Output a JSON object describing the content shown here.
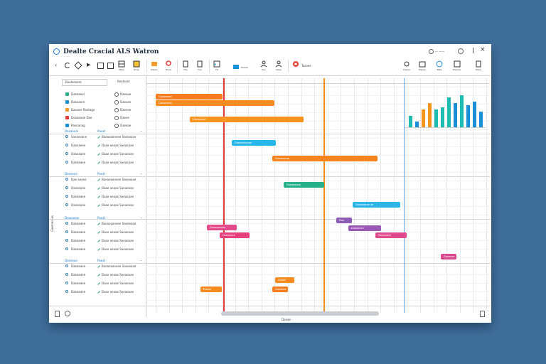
{
  "app": {
    "title": "Dealte Cracial ALS Watron",
    "subtitle": "———"
  },
  "window_controls": {
    "status": "— ——",
    "icons": [
      "user-icon",
      "help-icon",
      "minimize-icon",
      "close-icon"
    ]
  },
  "toolbar": {
    "tools": [
      {
        "label": "Ntee",
        "icon": "table-icon"
      },
      {
        "label": "Ense",
        "icon": "list-icon"
      },
      {
        "label": "Daeeo",
        "icon": "folder-icon"
      },
      {
        "label": "Ense",
        "icon": "pin-icon"
      },
      {
        "label": "Dre",
        "icon": "doc-icon"
      },
      {
        "label": "Fne",
        "icon": "doc-icon"
      },
      {
        "label": "Fe",
        "icon": "chart-icon"
      },
      {
        "label": "Daeae",
        "icon": "edit-icon"
      },
      {
        "label": "Ree",
        "icon": "person-icon"
      },
      {
        "label": "Saee",
        "icon": "person-icon"
      },
      {
        "label": "Tasaee",
        "icon": "chrome-icon"
      }
    ],
    "right_tools": [
      {
        "label": "Daase",
        "icon": "settings-icon"
      },
      {
        "label": "Daeae",
        "icon": "calendar-icon"
      },
      {
        "label": "Rata",
        "icon": "world-icon"
      },
      {
        "label": "Daease",
        "icon": "chart-icon"
      },
      {
        "label": "Daee",
        "icon": "doc-icon"
      }
    ]
  },
  "search": {
    "placeholder": "Baaleeaare",
    "tab": "Rentsest"
  },
  "sidebar_group_label": "Gaemeraes",
  "groups": [
    {
      "name": "",
      "col2": "",
      "items": [
        {
          "a": "Daeaeeel",
          "b": "Daeeae"
        },
        {
          "a": "Daeaeere",
          "b": "Daeaee"
        },
        {
          "a": "Danaee Rantage",
          "b": "Daeeae"
        },
        {
          "a": "Doaaeaae Dae",
          "b": "Daeee"
        },
        {
          "a": "Paenanag",
          "b": "Daeeae"
        }
      ]
    },
    {
      "name": "Daaaeaal",
      "col2": "Paeat",
      "items": [
        {
          "a": "Saeaeaane",
          "b": "Baeaeaaneee Saeaeaae"
        },
        {
          "a": "Daaeaeee",
          "b": "Daae aeaae Saeaeaae"
        },
        {
          "a": "Daaeaaee",
          "b": "Daae aeaae Saeaeaae"
        },
        {
          "a": "Daeaeaee",
          "b": "Daae aeaae Saeaeaae"
        }
      ]
    },
    {
      "name": "Daeaeae",
      "col2": "Paeat",
      "items": [
        {
          "a": "Dae aeaee",
          "b": "Baeaeaaneee Saeaeaae"
        },
        {
          "a": "Daeaeaee",
          "b": "Daae aeaae Saeaeaae"
        },
        {
          "a": "Daeaeaee",
          "b": "Daae aeaae Saeaeaae"
        },
        {
          "a": "Daeaeaee",
          "b": "Daae aeaae Saeaeaae"
        }
      ]
    },
    {
      "name": "Daaeaeae",
      "col2": "Paeat",
      "items": [
        {
          "a": "Daeaeaee",
          "b": "Baeaeaaneee Saeaeaae"
        },
        {
          "a": "Daeaeaee",
          "b": "Daae aeaae Saeaeaae"
        },
        {
          "a": "Daeaeaee",
          "b": "Daae aeaae Saeaeaae"
        },
        {
          "a": "Daeaeaee",
          "b": "Daae aeaae Saeaeaae"
        }
      ]
    },
    {
      "name": "Daeaeae",
      "col2": "Paeat",
      "items": [
        {
          "a": "Daeaeaee",
          "b": "Baeaeaaneee Saeaeaae"
        },
        {
          "a": "Daeaeaee",
          "b": "Daae aeaae Saeaeaae"
        },
        {
          "a": "Daeaeaee",
          "b": "Daae aeaae Saeaeaae"
        },
        {
          "a": "Daeaeaee",
          "b": "Daae aeaae Saeaeaae"
        }
      ]
    }
  ],
  "gantt": {
    "bars": [
      {
        "label": "Daeaeaeel",
        "color": "#f57c1f"
      },
      {
        "label": "Daeaeaeel",
        "color": "#f68b1f"
      },
      {
        "label": "Daeaeaeel",
        "color": "#f7941d"
      },
      {
        "label": "Daeaeaeenae",
        "color": "#29b6e8"
      },
      {
        "label": "Daeaeaeae",
        "color": "#f7831f"
      },
      {
        "label": "Daeaeaeae",
        "color": "#26b08a"
      },
      {
        "label": "Daeaeaeae ae",
        "color": "#2cb5e6"
      },
      {
        "label": "Dae",
        "color": "#8e5bb5"
      },
      {
        "label": "Daeaeaee",
        "color": "#9b59b6"
      },
      {
        "label": "Daeaeaeaae",
        "color": "#e24a8a"
      },
      {
        "label": "Daeaeaee",
        "color": "#e8407f"
      },
      {
        "label": "Daeaeaee",
        "color": "#e04a8c"
      },
      {
        "label": "Daeaeae",
        "color": "#d9488d"
      },
      {
        "label": "Daeae",
        "color": "#f68b1f"
      },
      {
        "label": "Daeaeae",
        "color": "#f57c1f"
      },
      {
        "label": "Daeae",
        "color": "#f68b1f"
      }
    ],
    "markers": {
      "today": "#e53935",
      "milestone": "#f28c1a",
      "deadline": "#5aa9e6"
    },
    "footer_label": "Daeae"
  },
  "chart_data": {
    "type": "bar",
    "values": [
      6,
      3,
      9,
      12,
      9,
      10,
      15,
      12,
      16,
      11,
      13,
      8
    ]
  },
  "colors": {
    "teal": "#1ebcb0",
    "orange": "#f7941d",
    "blue": "#1b8fd6"
  }
}
